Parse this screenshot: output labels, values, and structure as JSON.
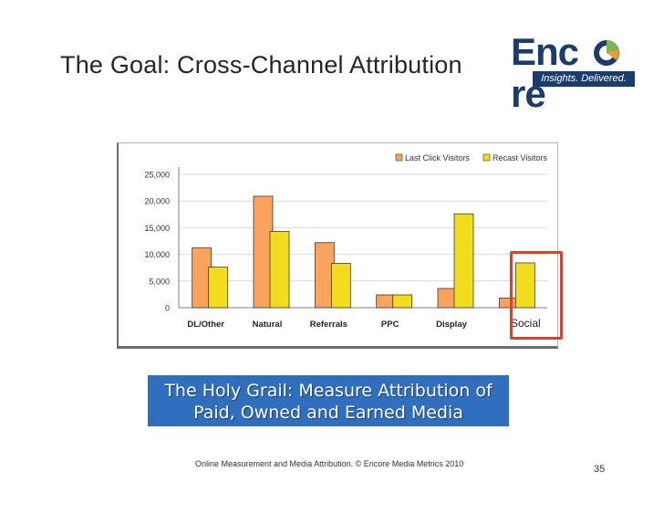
{
  "slide": {
    "title": "The Goal: Cross-Channel Attribution",
    "callout_line1": "The Holy Grail: Measure Attribution of",
    "callout_line2": "Paid, Owned and Earned Media",
    "footer": "Online Measurement and Media Attribution. © Encore Media Metrics 2010",
    "page_number": "35"
  },
  "logo": {
    "word_prefix": "Enc",
    "word_suffix": "re",
    "tagline": "Insights. Delivered.",
    "colors": {
      "navy": "#1a3d6e",
      "green": "#7ab648",
      "orange": "#f29a38"
    }
  },
  "chart_data": {
    "type": "bar",
    "categories": [
      "DL/Other",
      "Natural",
      "Referrals",
      "PPC",
      "Display",
      "Social"
    ],
    "series": [
      {
        "name": "Last Click Visitors",
        "color": "#f9a35c",
        "values": [
          11200,
          20900,
          12200,
          2400,
          3600,
          1800
        ]
      },
      {
        "name": "Recast Visitors",
        "color": "#f1dd1e",
        "values": [
          7600,
          14300,
          8300,
          2400,
          17600,
          8400
        ]
      }
    ],
    "yticks": [
      "0",
      "5,000",
      "10,000",
      "15,000",
      "20,000",
      "25,000"
    ],
    "ylim": [
      0,
      25000
    ],
    "legend_position": "top-right",
    "grid": true,
    "highlight_category": "Social",
    "highlight_color": "#d9432e"
  }
}
